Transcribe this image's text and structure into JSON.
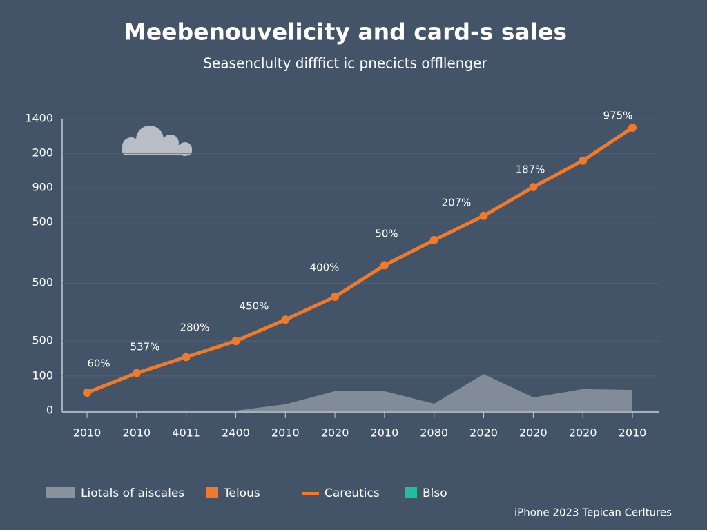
{
  "chart_data": {
    "type": "line",
    "title": "Meebenouvelicity and card-s sales",
    "subtitle": "Seasenclulty difffict ic pnecicts offllenger",
    "categories": [
      "2010",
      "2010",
      "4011",
      "2400",
      "2010",
      "2020",
      "2010",
      "2080",
      "2020",
      "2020",
      "2020",
      "2010"
    ],
    "series": [
      {
        "name": "Liotals of aiscales",
        "color": "#8a929e",
        "kind": "area",
        "values": [
          null,
          null,
          null,
          0,
          30,
          93,
          93,
          33,
          175,
          63,
          103,
          99
        ]
      },
      {
        "name": "Careutics",
        "color": "#f07a2a",
        "kind": "line",
        "values": [
          86,
          180,
          257,
          334,
          436,
          546,
          697,
          818,
          934,
          1072,
          1199,
          1357
        ]
      }
    ],
    "legend_extra": [
      {
        "name": "Telous",
        "color": "#f07a2a"
      },
      {
        "name": "Blso",
        "color": "#1fbf9f"
      }
    ],
    "annotations": [
      "60%",
      "537%",
      "280%",
      "450%",
      "400%",
      "50%",
      "207%",
      "187%",
      "975%"
    ],
    "ylim": [
      0,
      1400
    ],
    "yticks": [
      0,
      {
        "value": 166,
        "label": "100"
      },
      {
        "value": 334,
        "label": "500"
      },
      {
        "value": 612,
        "label": "500"
      },
      {
        "value": 904,
        "label": "500"
      },
      {
        "value": 1069,
        "label": "900"
      },
      {
        "value": 1234,
        "label": "200"
      },
      1400
    ],
    "grid": true,
    "footer": "iPhone 2023 Tepican Cerltures"
  }
}
